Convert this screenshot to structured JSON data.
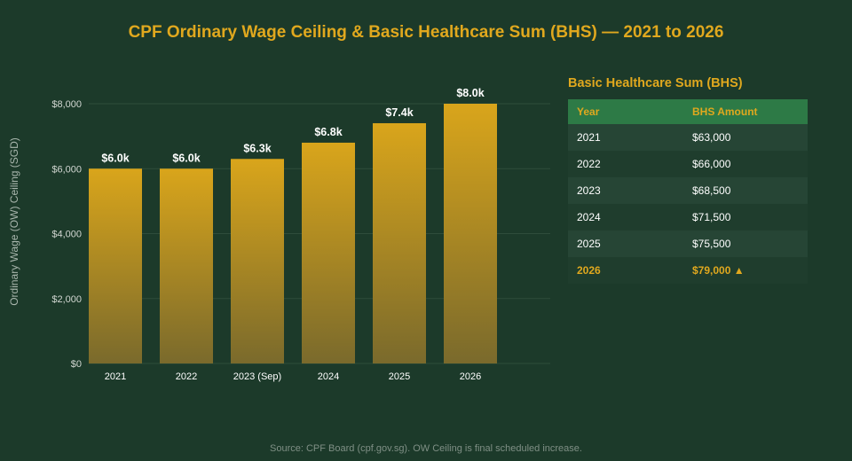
{
  "page_title": "CPF Ordinary Wage Ceiling & Basic Healthcare Sum (BHS) — 2021 to 2026",
  "chart_data": {
    "type": "bar",
    "categories": [
      "2021",
      "2022",
      "2023 (Sep)",
      "2024",
      "2025",
      "2026"
    ],
    "values": [
      6000,
      6000,
      6300,
      6800,
      7400,
      8000
    ],
    "data_labels": [
      "$6.0k",
      "$6.0k",
      "$6.3k",
      "$6.8k",
      "$7.4k",
      "$8.0k"
    ],
    "ylabel": "Ordinary Wage (OW) Ceiling (SGD)",
    "ylim": [
      0,
      8000
    ],
    "yticks": [
      0,
      2000,
      4000,
      6000,
      8000
    ],
    "ytick_labels": [
      "$0",
      "$2,000",
      "$4,000",
      "$6,000",
      "$8,000"
    ],
    "grid": true,
    "colors": {
      "bar_top": "#d9a51b",
      "bar_bottom": "#7a6a2c",
      "grid": "#2e4d3b"
    }
  },
  "bhs_table": {
    "title": "Basic Healthcare Sum (BHS)",
    "headers": [
      "Year",
      "BHS Amount"
    ],
    "rows": [
      {
        "year": "2021",
        "amount": "$63,000"
      },
      {
        "year": "2022",
        "amount": "$66,000"
      },
      {
        "year": "2023",
        "amount": "$68,500"
      },
      {
        "year": "2024",
        "amount": "$71,500"
      },
      {
        "year": "2025",
        "amount": "$75,500"
      },
      {
        "year": "2026",
        "amount": "$79,000 ▲"
      }
    ],
    "highlight_row": 5
  },
  "source_note": "Source: CPF Board (cpf.gov.sg). OW Ceiling is final scheduled increase.",
  "colors": {
    "background": "#1c3a2a",
    "accent": "#e0a81e",
    "table_header_bg": "#2d7a46"
  }
}
